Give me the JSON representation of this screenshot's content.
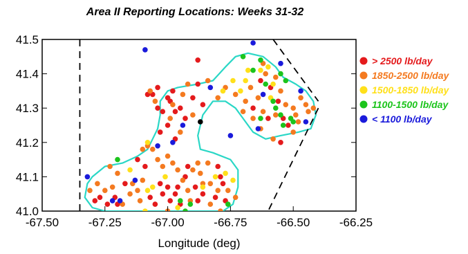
{
  "chart_data": {
    "type": "scatter",
    "title": "Area II Reporting Locations: Weeks 31-32",
    "xlabel": "Longitude (deg)",
    "ylabel": "",
    "xlim": [
      -67.5,
      -66.25
    ],
    "ylim": [
      41.0,
      41.5
    ],
    "xticks": [
      "-67.50",
      "-67.25",
      "-67.00",
      "-66.75",
      "-66.50",
      "-66.25"
    ],
    "yticks": [
      "41.0",
      "41.1",
      "41.2",
      "41.3",
      "41.4",
      "41.5"
    ],
    "legend_position": "right",
    "series": [
      {
        "name": "> 2500 lb/day",
        "color": "#e41a1c",
        "points": [
          [
            -67.29,
            41.03
          ],
          [
            -67.27,
            41.04
          ],
          [
            -67.24,
            41.02
          ],
          [
            -67.21,
            41.04
          ],
          [
            -67.2,
            41.02
          ],
          [
            -67.17,
            41.08
          ],
          [
            -67.12,
            41.15
          ],
          [
            -67.09,
            41.13
          ],
          [
            -67.07,
            41.04
          ],
          [
            -67.05,
            41.02
          ],
          [
            -67.03,
            41.08
          ],
          [
            -67.02,
            41.05
          ],
          [
            -67.0,
            41.07
          ],
          [
            -66.99,
            41.03
          ],
          [
            -66.97,
            41.05
          ],
          [
            -66.95,
            41.02
          ],
          [
            -67.03,
            41.23
          ],
          [
            -67.04,
            41.3
          ],
          [
            -67.02,
            41.29
          ],
          [
            -67.0,
            41.33
          ],
          [
            -66.98,
            41.35
          ],
          [
            -66.97,
            41.29
          ],
          [
            -66.95,
            41.3
          ],
          [
            -66.93,
            41.27
          ],
          [
            -66.9,
            41.33
          ],
          [
            -66.88,
            41.37
          ],
          [
            -66.88,
            41.44
          ],
          [
            -66.86,
            41.31
          ],
          [
            -66.93,
            41.1
          ],
          [
            -66.89,
            41.07
          ],
          [
            -66.86,
            41.05
          ],
          [
            -66.81,
            41.04
          ],
          [
            -66.8,
            41.13
          ],
          [
            -66.77,
            41.03
          ],
          [
            -67.04,
            41.36
          ],
          [
            -66.97,
            41.21
          ],
          [
            -66.92,
            41.13
          ],
          [
            -66.63,
            41.38
          ],
          [
            -66.59,
            41.36
          ],
          [
            -66.56,
            41.32
          ],
          [
            -66.54,
            41.27
          ],
          [
            -66.52,
            41.25
          ],
          [
            -66.55,
            41.2
          ],
          [
            -66.6,
            41.27
          ],
          [
            -66.66,
            41.3
          ],
          [
            -67.08,
            41.34
          ],
          [
            -67.06,
            41.34
          ],
          [
            -67.0,
            41.25
          ],
          [
            -66.99,
            41.32
          ],
          [
            -66.96,
            41.07
          ],
          [
            -66.78,
            41.08
          ],
          [
            -66.79,
            41.1
          ],
          [
            -66.88,
            41.03
          ]
        ]
      },
      {
        "name": "1850-2500 lb/day",
        "color": "#f47a20",
        "points": [
          [
            -67.31,
            41.06
          ],
          [
            -67.28,
            41.08
          ],
          [
            -67.25,
            41.06
          ],
          [
            -67.22,
            41.07
          ],
          [
            -67.18,
            41.02
          ],
          [
            -67.15,
            41.05
          ],
          [
            -67.12,
            41.06
          ],
          [
            -67.1,
            41.09
          ],
          [
            -67.06,
            41.18
          ],
          [
            -67.04,
            41.15
          ],
          [
            -67.02,
            41.13
          ],
          [
            -67.0,
            41.16
          ],
          [
            -66.98,
            41.14
          ],
          [
            -66.96,
            41.12
          ],
          [
            -66.94,
            41.09
          ],
          [
            -66.92,
            41.06
          ],
          [
            -66.9,
            41.12
          ],
          [
            -66.88,
            41.14
          ],
          [
            -66.87,
            41.11
          ],
          [
            -66.84,
            41.14
          ],
          [
            -66.83,
            41.08
          ],
          [
            -66.83,
            41.02
          ],
          [
            -66.8,
            41.06
          ],
          [
            -66.76,
            41.06
          ],
          [
            -66.73,
            41.04
          ],
          [
            -66.79,
            41.0
          ],
          [
            -67.23,
            41.13
          ],
          [
            -67.2,
            41.11
          ],
          [
            -67.14,
            41.08
          ],
          [
            -67.1,
            41.18
          ],
          [
            -67.08,
            41.19
          ],
          [
            -66.99,
            41.27
          ],
          [
            -66.98,
            41.31
          ],
          [
            -66.94,
            41.34
          ],
          [
            -66.92,
            41.37
          ],
          [
            -66.9,
            41.28
          ],
          [
            -66.84,
            41.38
          ],
          [
            -66.8,
            41.33
          ],
          [
            -66.77,
            41.36
          ],
          [
            -66.73,
            41.34
          ],
          [
            -66.69,
            41.32
          ],
          [
            -66.67,
            41.36
          ],
          [
            -66.64,
            41.33
          ],
          [
            -66.62,
            41.29
          ],
          [
            -66.61,
            41.4
          ],
          [
            -66.62,
            41.43
          ],
          [
            -66.57,
            41.39
          ],
          [
            -66.55,
            41.35
          ],
          [
            -66.53,
            41.31
          ],
          [
            -66.5,
            41.3
          ],
          [
            -66.49,
            41.28
          ],
          [
            -66.47,
            41.33
          ],
          [
            -66.45,
            41.31
          ],
          [
            -66.44,
            41.29
          ],
          [
            -66.42,
            41.3
          ],
          [
            -66.48,
            41.26
          ],
          [
            -66.5,
            41.23
          ],
          [
            -66.57,
            41.28
          ],
          [
            -66.63,
            41.24
          ],
          [
            -66.66,
            41.27
          ],
          [
            -67.07,
            41.35
          ],
          [
            -67.05,
            41.32
          ],
          [
            -66.95,
            41.23
          ],
          [
            -66.91,
            41.03
          ],
          [
            -67.0,
            41.0
          ],
          [
            -67.11,
            41.03
          ],
          [
            -66.86,
            41.08
          ],
          [
            -66.7,
            41.29
          ],
          [
            -66.58,
            41.21
          ]
        ]
      },
      {
        "name": "1500-1850 lb/day",
        "color": "#ffe01a",
        "points": [
          [
            -67.15,
            41.12
          ],
          [
            -67.08,
            41.06
          ],
          [
            -67.01,
            41.1
          ],
          [
            -66.96,
            41.01
          ],
          [
            -66.86,
            41.07
          ],
          [
            -66.81,
            41.1
          ],
          [
            -66.77,
            41.11
          ],
          [
            -66.74,
            41.09
          ],
          [
            -66.78,
            41.35
          ],
          [
            -66.74,
            41.38
          ],
          [
            -66.71,
            41.35
          ],
          [
            -66.69,
            41.38
          ],
          [
            -66.68,
            41.41
          ],
          [
            -66.63,
            41.41
          ],
          [
            -66.6,
            41.42
          ],
          [
            -66.58,
            41.37
          ],
          [
            -66.59,
            41.33
          ],
          [
            -67.08,
            41.2
          ],
          [
            -67.09,
            41.0
          ],
          [
            -67.06,
            41.07
          ]
        ]
      },
      {
        "name": "1100-1500 lb/day",
        "color": "#1cc41c",
        "points": [
          [
            -67.2,
            41.15
          ],
          [
            -66.91,
            41.02
          ],
          [
            -66.76,
            41.02
          ],
          [
            -66.7,
            41.45
          ],
          [
            -66.66,
            41.41
          ],
          [
            -66.63,
            41.44
          ],
          [
            -66.61,
            41.37
          ],
          [
            -66.58,
            41.32
          ],
          [
            -66.57,
            41.3
          ],
          [
            -66.55,
            41.28
          ],
          [
            -66.54,
            41.25
          ],
          [
            -66.53,
            41.38
          ],
          [
            -66.51,
            41.27
          ],
          [
            -66.5,
            41.26
          ],
          [
            -66.63,
            41.27
          ],
          [
            -66.55,
            41.4
          ],
          [
            -66.95,
            41.03
          ],
          [
            -66.93,
            41.0
          ]
        ]
      },
      {
        "name": "< 1100 lb/day",
        "color": "#1a1adb",
        "points": [
          [
            -67.32,
            41.1
          ],
          [
            -67.22,
            41.03
          ],
          [
            -67.19,
            41.03
          ],
          [
            -67.13,
            41.09
          ],
          [
            -67.09,
            41.47
          ],
          [
            -67.04,
            41.19
          ],
          [
            -66.98,
            41.2
          ],
          [
            -66.94,
            41.25
          ],
          [
            -66.83,
            41.36
          ],
          [
            -66.75,
            41.22
          ],
          [
            -66.66,
            41.49
          ],
          [
            -66.55,
            41.43
          ],
          [
            -66.47,
            41.35
          ],
          [
            -66.45,
            41.26
          ],
          [
            -66.62,
            41.34
          ],
          [
            -66.64,
            41.24
          ]
        ]
      }
    ],
    "special_points": [
      {
        "color": "#000000",
        "points": [
          [
            -66.87,
            41.26
          ]
        ]
      }
    ],
    "boundary_color": "#2ad7c6",
    "boundary_polygons": [
      [
        [
          -67.32,
          41.08
        ],
        [
          -67.3,
          41.1
        ],
        [
          -67.25,
          41.13
        ],
        [
          -67.18,
          41.14
        ],
        [
          -67.12,
          41.16
        ],
        [
          -67.08,
          41.18
        ],
        [
          -67.06,
          41.21
        ],
        [
          -67.04,
          41.24
        ],
        [
          -67.03,
          41.28
        ],
        [
          -67.03,
          41.32
        ],
        [
          -67.0,
          41.35
        ],
        [
          -66.96,
          41.36
        ],
        [
          -66.88,
          41.37
        ],
        [
          -66.82,
          41.38
        ],
        [
          -66.77,
          41.42
        ],
        [
          -66.73,
          41.45
        ],
        [
          -66.68,
          41.46
        ],
        [
          -66.62,
          41.45
        ],
        [
          -66.57,
          41.42
        ],
        [
          -66.54,
          41.39
        ],
        [
          -66.49,
          41.37
        ],
        [
          -66.45,
          41.35
        ],
        [
          -66.42,
          41.32
        ],
        [
          -66.41,
          41.28
        ],
        [
          -66.43,
          41.24
        ],
        [
          -66.48,
          41.23
        ],
        [
          -66.55,
          41.22
        ],
        [
          -66.61,
          41.21
        ],
        [
          -66.66,
          41.23
        ],
        [
          -66.7,
          41.27
        ],
        [
          -66.73,
          41.3
        ],
        [
          -66.77,
          41.32
        ],
        [
          -66.82,
          41.32
        ],
        [
          -66.86,
          41.28
        ],
        [
          -66.88,
          41.22
        ],
        [
          -66.87,
          41.18
        ],
        [
          -66.82,
          41.17
        ],
        [
          -66.75,
          41.15
        ],
        [
          -66.72,
          41.12
        ],
        [
          -66.72,
          41.07
        ],
        [
          -66.74,
          41.02
        ],
        [
          -66.78,
          41.0
        ],
        [
          -66.85,
          41.0
        ],
        [
          -66.95,
          41.0
        ],
        [
          -67.05,
          41.0
        ],
        [
          -67.15,
          41.0
        ],
        [
          -67.25,
          41.0
        ],
        [
          -67.3,
          41.01
        ],
        [
          -67.33,
          41.04
        ]
      ]
    ],
    "boundary_lines": [
      [
        [
          -67.35,
          41.0
        ],
        [
          -67.35,
          41.5
        ]
      ],
      [
        [
          -66.58,
          41.5
        ],
        [
          -66.4,
          41.32
        ]
      ],
      [
        [
          -66.4,
          41.3
        ],
        [
          -66.6,
          41.0
        ]
      ]
    ]
  }
}
